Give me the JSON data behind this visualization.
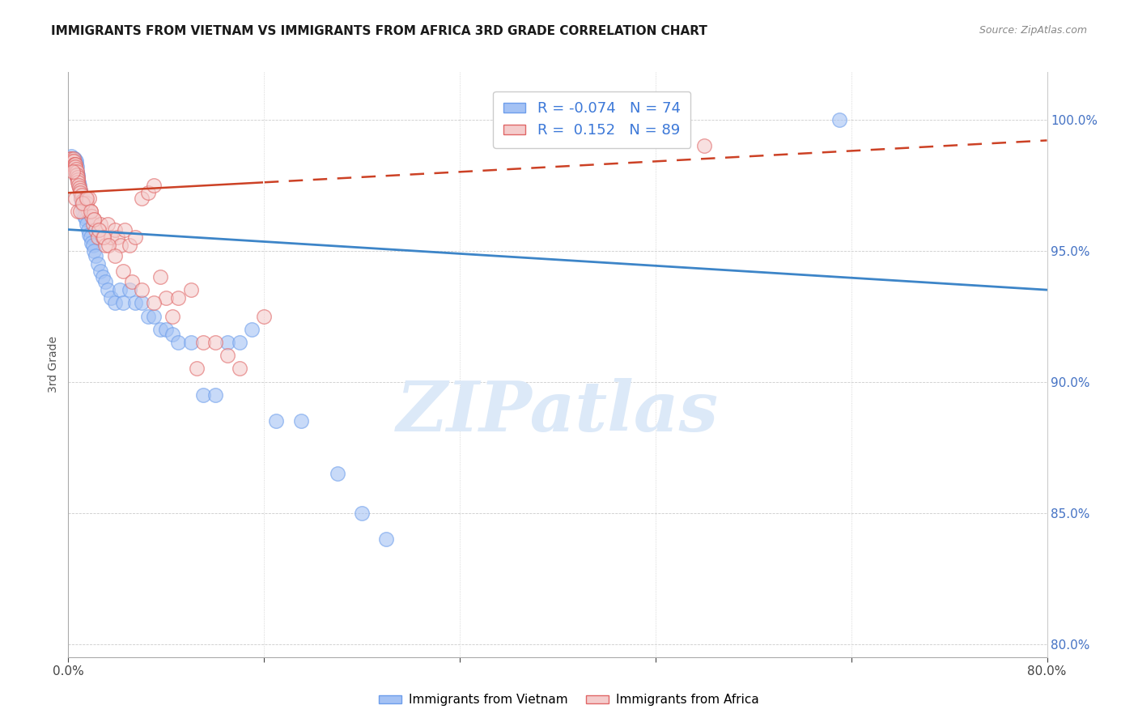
{
  "title": "IMMIGRANTS FROM VIETNAM VS IMMIGRANTS FROM AFRICA 3RD GRADE CORRELATION CHART",
  "source": "Source: ZipAtlas.com",
  "ylabel": "3rd Grade",
  "x_range": [
    0.0,
    80.0
  ],
  "y_range": [
    79.5,
    101.8
  ],
  "R_vietnam": -0.074,
  "N_vietnam": 74,
  "R_africa": 0.152,
  "N_africa": 89,
  "color_vietnam": "#a4c2f4",
  "color_africa": "#f4cccc",
  "edge_color_vietnam": "#6d9eeb",
  "edge_color_africa": "#e06666",
  "line_color_vietnam": "#3d85c8",
  "line_color_africa": "#cc4125",
  "background_color": "#ffffff",
  "watermark_color": "#dce9f8",
  "vietnam_x": [
    0.15,
    0.18,
    0.22,
    0.25,
    0.28,
    0.3,
    0.32,
    0.35,
    0.38,
    0.4,
    0.42,
    0.45,
    0.48,
    0.5,
    0.52,
    0.55,
    0.58,
    0.6,
    0.62,
    0.65,
    0.68,
    0.7,
    0.72,
    0.75,
    0.78,
    0.8,
    0.85,
    0.9,
    0.95,
    1.0,
    1.05,
    1.1,
    1.15,
    1.2,
    1.3,
    1.4,
    1.5,
    1.6,
    1.7,
    1.8,
    1.9,
    2.0,
    2.1,
    2.2,
    2.4,
    2.6,
    2.8,
    3.0,
    3.2,
    3.5,
    3.8,
    4.2,
    4.5,
    5.0,
    5.5,
    6.0,
    6.5,
    7.0,
    7.5,
    8.0,
    8.5,
    9.0,
    10.0,
    11.0,
    12.0,
    13.0,
    14.0,
    15.0,
    17.0,
    19.0,
    22.0,
    24.0,
    26.0,
    63.0
  ],
  "vietnam_y": [
    98.3,
    98.4,
    98.5,
    98.6,
    98.5,
    98.4,
    98.5,
    98.5,
    98.3,
    98.4,
    98.5,
    98.5,
    98.4,
    98.3,
    98.5,
    98.4,
    98.2,
    98.3,
    98.4,
    98.3,
    98.2,
    98.0,
    97.8,
    97.9,
    97.7,
    97.8,
    97.6,
    97.5,
    97.3,
    97.2,
    97.0,
    96.8,
    96.7,
    96.5,
    96.3,
    96.2,
    96.0,
    95.8,
    95.6,
    95.5,
    95.3,
    95.2,
    95.0,
    94.8,
    94.5,
    94.2,
    94.0,
    93.8,
    93.5,
    93.2,
    93.0,
    93.5,
    93.0,
    93.5,
    93.0,
    93.0,
    92.5,
    92.5,
    92.0,
    92.0,
    91.8,
    91.5,
    91.5,
    89.5,
    89.5,
    91.5,
    91.5,
    92.0,
    88.5,
    88.5,
    86.5,
    85.0,
    84.0,
    100.0
  ],
  "africa_x": [
    0.12,
    0.15,
    0.18,
    0.2,
    0.22,
    0.25,
    0.28,
    0.3,
    0.32,
    0.35,
    0.38,
    0.4,
    0.42,
    0.45,
    0.48,
    0.5,
    0.52,
    0.55,
    0.58,
    0.6,
    0.62,
    0.65,
    0.68,
    0.7,
    0.72,
    0.75,
    0.78,
    0.8,
    0.85,
    0.9,
    0.95,
    1.0,
    1.05,
    1.1,
    1.15,
    1.2,
    1.3,
    1.4,
    1.5,
    1.6,
    1.7,
    1.8,
    1.9,
    2.0,
    2.1,
    2.2,
    2.4,
    2.6,
    2.8,
    3.0,
    3.2,
    3.5,
    3.8,
    4.0,
    4.3,
    4.6,
    5.0,
    5.5,
    6.0,
    6.5,
    7.0,
    7.5,
    8.0,
    9.0,
    10.0,
    11.0,
    12.0,
    14.0,
    16.0,
    0.35,
    0.55,
    0.75,
    1.0,
    1.2,
    1.5,
    1.8,
    2.1,
    2.5,
    2.9,
    3.3,
    3.8,
    4.5,
    5.2,
    6.0,
    7.0,
    8.5,
    10.5,
    13.0,
    52.0
  ],
  "africa_y": [
    98.3,
    98.4,
    98.5,
    98.3,
    98.4,
    98.5,
    98.3,
    98.4,
    98.3,
    98.4,
    98.3,
    98.4,
    98.5,
    98.4,
    98.3,
    98.3,
    98.2,
    98.3,
    98.2,
    98.0,
    98.1,
    97.9,
    98.0,
    97.8,
    97.9,
    97.8,
    97.7,
    97.6,
    97.5,
    97.4,
    97.3,
    97.2,
    97.0,
    97.1,
    96.9,
    96.8,
    96.7,
    97.0,
    96.8,
    96.5,
    97.0,
    96.5,
    96.3,
    96.0,
    96.2,
    95.8,
    95.5,
    96.0,
    95.5,
    95.2,
    96.0,
    95.5,
    95.8,
    95.5,
    95.2,
    95.8,
    95.2,
    95.5,
    97.0,
    97.2,
    97.5,
    94.0,
    93.2,
    93.2,
    93.5,
    91.5,
    91.5,
    90.5,
    92.5,
    98.0,
    97.0,
    96.5,
    96.5,
    96.8,
    97.0,
    96.5,
    96.2,
    95.8,
    95.5,
    95.2,
    94.8,
    94.2,
    93.8,
    93.5,
    93.0,
    92.5,
    90.5,
    91.0,
    99.0
  ]
}
